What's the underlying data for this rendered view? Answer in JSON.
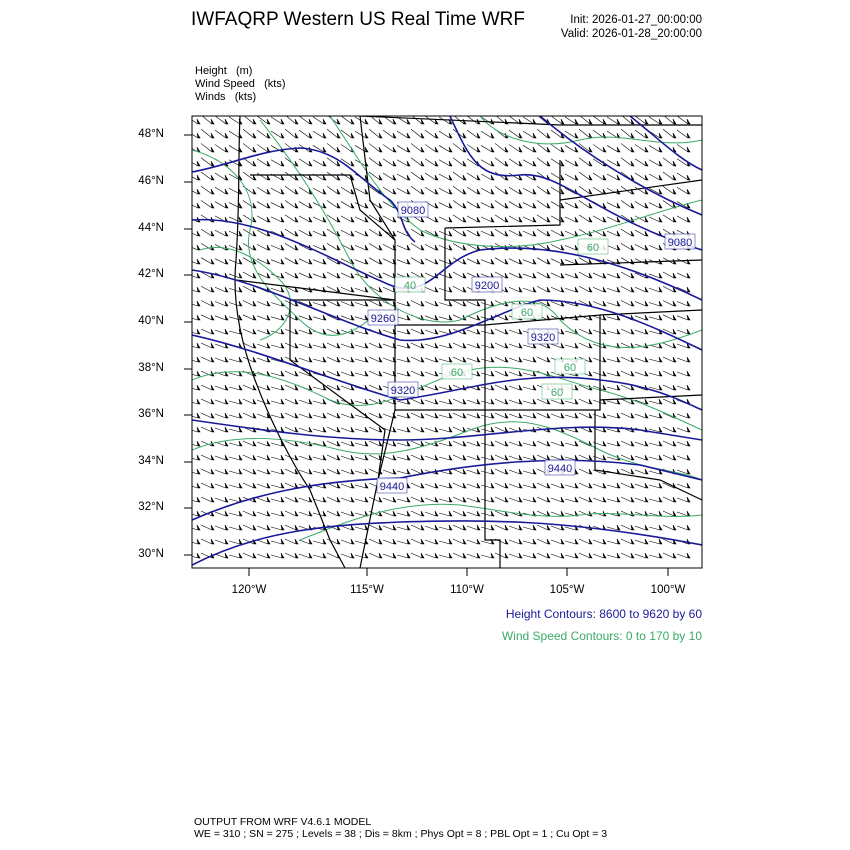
{
  "header": {
    "title": "IWFAQRP Western US Real Time WRF",
    "init": "Init: 2026-01-27_00:00:00",
    "valid": "Valid: 2026-01-28_20:00:00"
  },
  "fields": [
    "Height   (m)",
    "Wind Speed   (kts)",
    "Winds   (kts)"
  ],
  "map": {
    "lat_ticks": [
      "48°N",
      "46°N",
      "44°N",
      "42°N",
      "40°N",
      "38°N",
      "36°N",
      "34°N",
      "32°N",
      "30°N"
    ],
    "lon_ticks": [
      "120°W",
      "115°W",
      "110°W",
      "105°W",
      "100°W"
    ],
    "height_labels": [
      "9080",
      "9200",
      "9260",
      "9320",
      "9320",
      "9440",
      "9440",
      "9080"
    ],
    "wind_labels": [
      "40",
      "60",
      "60",
      "60",
      "60",
      "60"
    ],
    "colors": {
      "height": "#1a1a99",
      "wind_speed": "#3aaa66",
      "barbs": "#000000",
      "borders": "#000000"
    }
  },
  "contour_info": {
    "height": "Height Contours: 8600 to 9620 by 60",
    "wind": "Wind Speed Contours: 0 to 170 by 10"
  },
  "footer": {
    "line1": "OUTPUT FROM WRF V4.6.1 MODEL",
    "line2": "WE = 310 ; SN = 275 ; Levels = 38 ; Dis = 8km ; Phys Opt = 8 ; PBL Opt = 1 ; Cu Opt = 3"
  }
}
